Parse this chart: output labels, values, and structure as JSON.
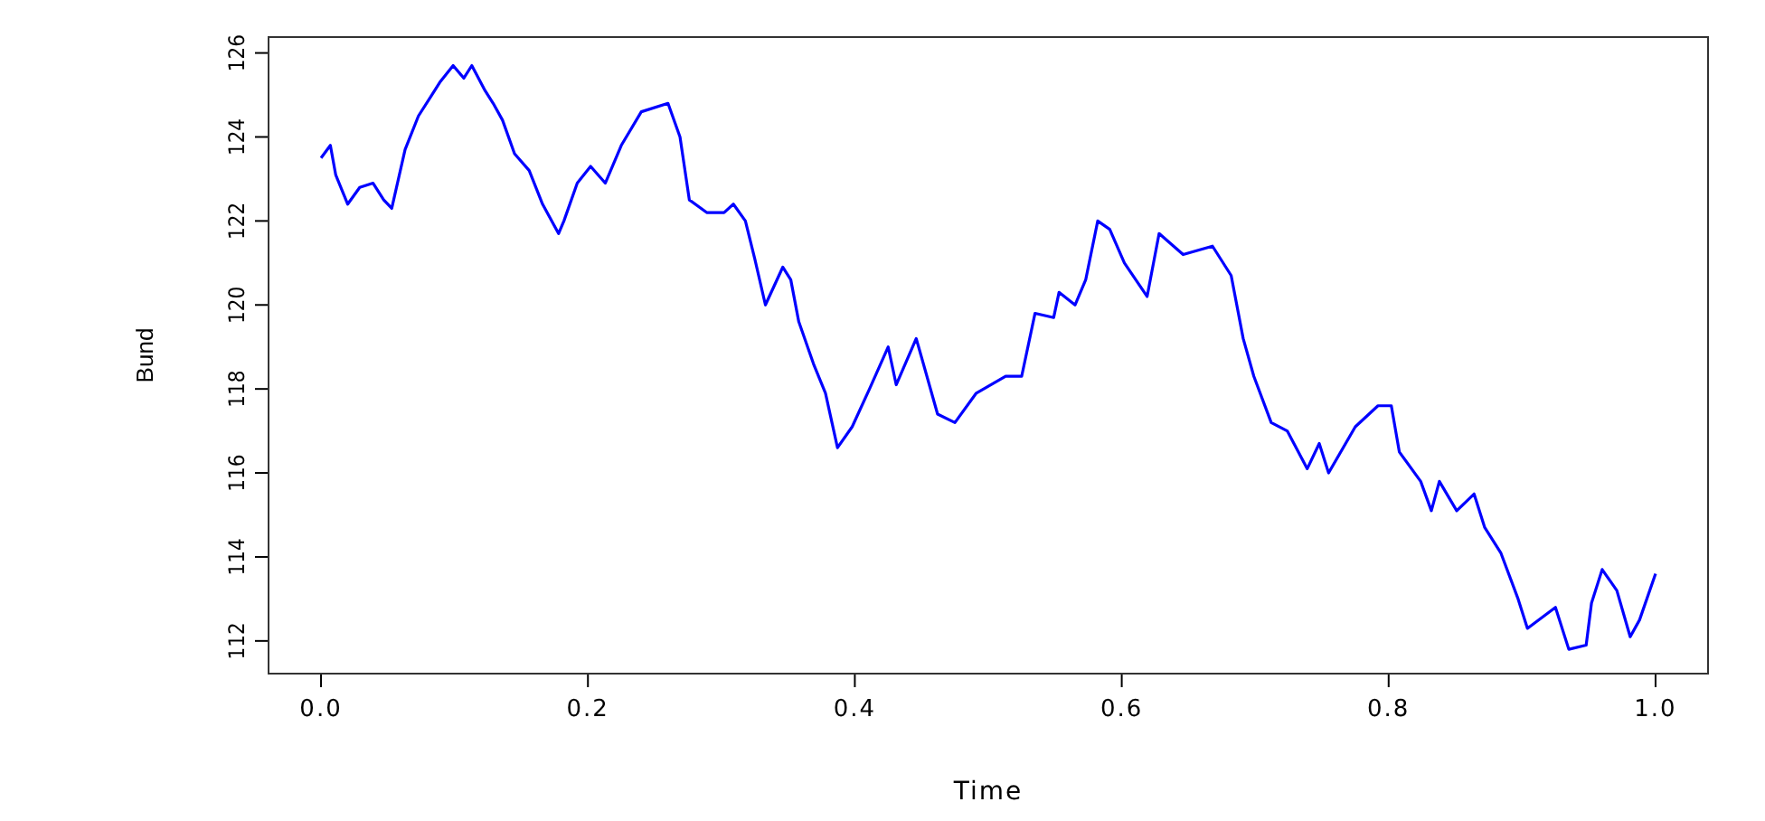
{
  "chart_data": {
    "type": "line",
    "xlabel": "Time",
    "ylabel": "Bund",
    "xlim": [
      -0.04,
      1.04
    ],
    "ylim": [
      111.2,
      126.4
    ],
    "xticks": [
      {
        "value": 0,
        "label": "0.0"
      },
      {
        "value": 0.2,
        "label": "0.2"
      },
      {
        "value": 0.4,
        "label": "0.4"
      },
      {
        "value": 0.6,
        "label": "0.6"
      },
      {
        "value": 0.8,
        "label": "0.8"
      },
      {
        "value": 1,
        "label": "1.0"
      }
    ],
    "yticks": [
      112,
      114,
      116,
      118,
      120,
      122,
      124,
      126
    ],
    "marker": "none",
    "line_style": "solid",
    "series": [
      {
        "color": "#0000ff",
        "x": [
          0,
          0.007,
          0.011,
          0.02,
          0.029,
          0.039,
          0.047,
          0.053,
          0.063,
          0.073,
          0.083,
          0.089,
          0.099,
          0.107,
          0.113,
          0.123,
          0.129,
          0.136,
          0.145,
          0.156,
          0.166,
          0.178,
          0.182,
          0.192,
          0.202,
          0.213,
          0.225,
          0.24,
          0.26,
          0.269,
          0.276,
          0.289,
          0.302,
          0.309,
          0.318,
          0.325,
          0.333,
          0.346,
          0.352,
          0.358,
          0.369,
          0.378,
          0.387,
          0.398,
          0.411,
          0.425,
          0.431,
          0.446,
          0.462,
          0.475,
          0.491,
          0.513,
          0.525,
          0.535,
          0.549,
          0.553,
          0.565,
          0.573,
          0.582,
          0.591,
          0.602,
          0.619,
          0.628,
          0.646,
          0.668,
          0.682,
          0.691,
          0.699,
          0.712,
          0.724,
          0.739,
          0.748,
          0.755,
          0.775,
          0.792,
          0.802,
          0.808,
          0.824,
          0.832,
          0.838,
          0.851,
          0.864,
          0.872,
          0.884,
          0.897,
          0.904,
          0.925,
          0.935,
          0.948,
          0.952,
          0.96,
          0.971,
          0.981,
          0.988,
          1.0
        ],
        "values": [
          123.5,
          123.8,
          123.1,
          122.4,
          122.8,
          122.9,
          122.5,
          122.3,
          123.7,
          124.5,
          125.0,
          125.3,
          125.7,
          125.4,
          125.7,
          125.1,
          124.8,
          124.4,
          123.6,
          123.2,
          122.4,
          121.7,
          122.0,
          122.9,
          123.3,
          122.9,
          123.8,
          124.6,
          124.8,
          124.0,
          122.5,
          122.2,
          122.2,
          122.4,
          122.0,
          121.1,
          120.0,
          120.9,
          120.6,
          119.6,
          118.6,
          117.9,
          116.6,
          117.1,
          118.0,
          119.0,
          118.1,
          119.2,
          117.4,
          117.2,
          117.9,
          118.3,
          118.3,
          119.8,
          119.7,
          120.3,
          120.0,
          120.6,
          122.0,
          121.8,
          121.0,
          120.2,
          121.7,
          121.2,
          121.4,
          120.7,
          119.2,
          118.3,
          117.2,
          117.0,
          116.1,
          116.7,
          116.0,
          117.1,
          117.6,
          117.6,
          116.5,
          115.8,
          115.1,
          115.8,
          115.1,
          115.5,
          114.7,
          114.1,
          113.0,
          112.3,
          112.8,
          111.8,
          111.9,
          112.9,
          113.7,
          113.2,
          112.1,
          112.5,
          113.6
        ]
      }
    ]
  }
}
